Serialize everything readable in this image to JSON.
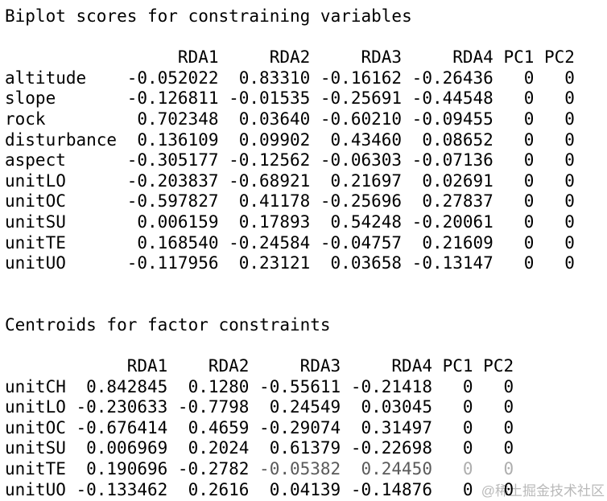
{
  "page": {
    "background_color": "#ffffff",
    "text_color": "#000000"
  },
  "watermark": {
    "text": "@稀土掘金技术社区",
    "color": "#b9b9b9"
  },
  "biplot": {
    "title": "Biplot scores for constraining variables",
    "columns": [
      "RDA1",
      "RDA2",
      "RDA3",
      "RDA4",
      "PC1",
      "PC2"
    ],
    "rows": [
      {
        "label": "altitude",
        "v": [
          "-0.052022",
          "0.83310",
          "-0.16162",
          "-0.26436",
          "0",
          "0"
        ]
      },
      {
        "label": "slope",
        "v": [
          "-0.126811",
          "-0.01535",
          "-0.25691",
          "-0.44548",
          "0",
          "0"
        ]
      },
      {
        "label": "rock",
        "v": [
          "0.702348",
          "0.03640",
          "-0.60210",
          "-0.09455",
          "0",
          "0"
        ]
      },
      {
        "label": "disturbance",
        "v": [
          "0.136109",
          "0.09902",
          "0.43460",
          "0.08652",
          "0",
          "0"
        ]
      },
      {
        "label": "aspect",
        "v": [
          "-0.305177",
          "-0.12562",
          "-0.06303",
          "-0.07136",
          "0",
          "0"
        ]
      },
      {
        "label": "unitLO",
        "v": [
          "-0.203837",
          "-0.68921",
          "0.21697",
          "0.02691",
          "0",
          "0"
        ]
      },
      {
        "label": "unitOC",
        "v": [
          "-0.597827",
          "0.41178",
          "-0.25696",
          "0.27837",
          "0",
          "0"
        ]
      },
      {
        "label": "unitSU",
        "v": [
          "0.006159",
          "0.17893",
          "0.54248",
          "-0.20061",
          "0",
          "0"
        ]
      },
      {
        "label": "unitTE",
        "v": [
          "0.168540",
          "-0.24584",
          "-0.04757",
          "0.21609",
          "0",
          "0"
        ]
      },
      {
        "label": "unitUO",
        "v": [
          "-0.117956",
          "0.23121",
          "0.03658",
          "-0.13147",
          "0",
          "0"
        ]
      }
    ]
  },
  "centroids": {
    "title": "Centroids for factor constraints",
    "columns": [
      "RDA1",
      "RDA2",
      "RDA3",
      "RDA4",
      "PC1",
      "PC2"
    ],
    "rows": [
      {
        "label": "unitCH",
        "v": [
          "0.842845",
          "0.1280",
          "-0.55611",
          "-0.21418",
          "0",
          "0"
        ]
      },
      {
        "label": "unitLO",
        "v": [
          "-0.230633",
          "-0.7798",
          "0.24549",
          "0.03045",
          "0",
          "0"
        ]
      },
      {
        "label": "unitOC",
        "v": [
          "-0.676414",
          "0.4659",
          "-0.29074",
          "0.31497",
          "0",
          "0"
        ]
      },
      {
        "label": "unitSU",
        "v": [
          "0.006969",
          "0.2024",
          "0.61379",
          "-0.22698",
          "0",
          "0"
        ]
      },
      {
        "label": "unitTE",
        "v": [
          "0.190696",
          "-0.2782",
          "-0.05382",
          "0.24450",
          "0",
          "0"
        ],
        "degraded": true
      },
      {
        "label": "unitUO",
        "v": [
          "-0.133462",
          "0.2616",
          "0.04139",
          "-0.14876",
          "0",
          "0"
        ]
      }
    ]
  }
}
